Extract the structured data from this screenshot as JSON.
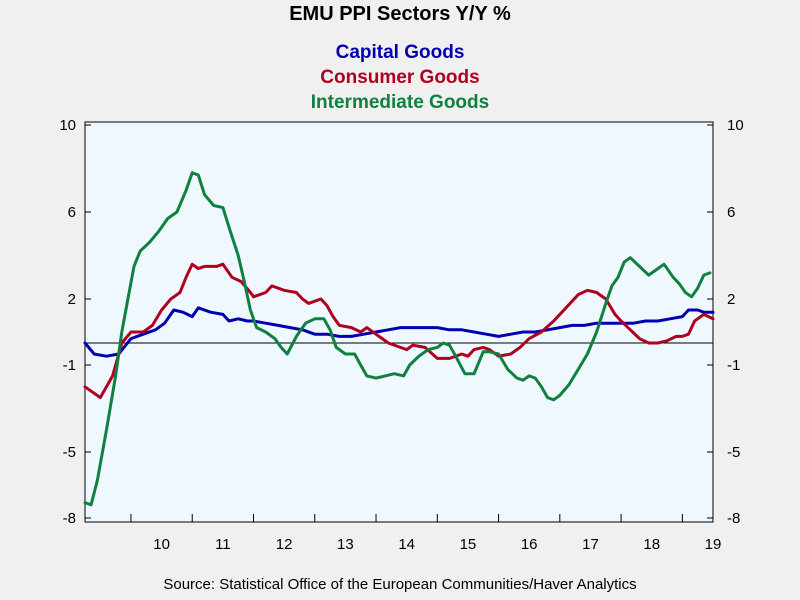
{
  "chart_data": {
    "type": "line",
    "title": "EMU PPI Sectors Y/Y %",
    "source": "Source:  Statistical Office of the European Communities/Haver Analytics",
    "xlabel": "",
    "ylabel": "",
    "ylim": [
      -8,
      10
    ],
    "y_ticks": [
      10,
      6,
      2,
      -1,
      -5,
      -8
    ],
    "x_start": 2009.25,
    "x_end": 2019.5,
    "x_ticks": [
      {
        "label": "10",
        "x": 2010.5
      },
      {
        "label": "11",
        "x": 2011.5
      },
      {
        "label": "12",
        "x": 2012.5
      },
      {
        "label": "13",
        "x": 2013.5
      },
      {
        "label": "14",
        "x": 2014.5
      },
      {
        "label": "15",
        "x": 2015.5
      },
      {
        "label": "16",
        "x": 2016.5
      },
      {
        "label": "17",
        "x": 2017.5
      },
      {
        "label": "18",
        "x": 2018.5
      },
      {
        "label": "19",
        "x": 2019.5
      }
    ],
    "zero_line": 0,
    "legend_position": "top-center",
    "background_color": "#f0f8ff",
    "series": [
      {
        "name": "Capital Goods",
        "color": "#0000b0",
        "points": [
          [
            2009.25,
            0.0
          ],
          [
            2009.4,
            -0.5
          ],
          [
            2009.6,
            -0.6
          ],
          [
            2009.8,
            -0.5
          ],
          [
            2010.0,
            0.2
          ],
          [
            2010.2,
            0.4
          ],
          [
            2010.4,
            0.6
          ],
          [
            2010.55,
            0.9
          ],
          [
            2010.7,
            1.5
          ],
          [
            2010.85,
            1.4
          ],
          [
            2011.0,
            1.2
          ],
          [
            2011.1,
            1.6
          ],
          [
            2011.3,
            1.4
          ],
          [
            2011.5,
            1.3
          ],
          [
            2011.6,
            1.0
          ],
          [
            2011.75,
            1.1
          ],
          [
            2011.9,
            1.0
          ],
          [
            2012.0,
            1.0
          ],
          [
            2012.2,
            0.9
          ],
          [
            2012.4,
            0.8
          ],
          [
            2012.6,
            0.7
          ],
          [
            2012.8,
            0.6
          ],
          [
            2013.0,
            0.4
          ],
          [
            2013.2,
            0.4
          ],
          [
            2013.4,
            0.3
          ],
          [
            2013.6,
            0.3
          ],
          [
            2013.8,
            0.4
          ],
          [
            2014.0,
            0.5
          ],
          [
            2014.2,
            0.6
          ],
          [
            2014.4,
            0.7
          ],
          [
            2014.6,
            0.7
          ],
          [
            2014.8,
            0.7
          ],
          [
            2015.0,
            0.7
          ],
          [
            2015.2,
            0.6
          ],
          [
            2015.4,
            0.6
          ],
          [
            2015.6,
            0.5
          ],
          [
            2015.8,
            0.4
          ],
          [
            2016.0,
            0.3
          ],
          [
            2016.2,
            0.4
          ],
          [
            2016.4,
            0.5
          ],
          [
            2016.6,
            0.5
          ],
          [
            2016.8,
            0.6
          ],
          [
            2017.0,
            0.7
          ],
          [
            2017.2,
            0.8
          ],
          [
            2017.4,
            0.8
          ],
          [
            2017.6,
            0.9
          ],
          [
            2017.8,
            0.9
          ],
          [
            2018.0,
            0.9
          ],
          [
            2018.2,
            0.9
          ],
          [
            2018.4,
            1.0
          ],
          [
            2018.6,
            1.0
          ],
          [
            2018.8,
            1.1
          ],
          [
            2019.0,
            1.2
          ],
          [
            2019.1,
            1.5
          ],
          [
            2019.25,
            1.5
          ],
          [
            2019.35,
            1.4
          ],
          [
            2019.5,
            1.4
          ]
        ]
      },
      {
        "name": "Consumer Goods",
        "color": "#b00020",
        "points": [
          [
            2009.25,
            -2.0
          ],
          [
            2009.5,
            -2.5
          ],
          [
            2009.7,
            -1.5
          ],
          [
            2009.85,
            0.0
          ],
          [
            2010.0,
            0.5
          ],
          [
            2010.2,
            0.5
          ],
          [
            2010.35,
            0.8
          ],
          [
            2010.5,
            1.5
          ],
          [
            2010.65,
            2.0
          ],
          [
            2010.8,
            2.3
          ],
          [
            2010.9,
            3.0
          ],
          [
            2011.0,
            3.6
          ],
          [
            2011.1,
            3.4
          ],
          [
            2011.2,
            3.5
          ],
          [
            2011.4,
            3.5
          ],
          [
            2011.5,
            3.6
          ],
          [
            2011.65,
            3.0
          ],
          [
            2011.8,
            2.8
          ],
          [
            2011.95,
            2.3
          ],
          [
            2012.0,
            2.1
          ],
          [
            2012.2,
            2.3
          ],
          [
            2012.3,
            2.6
          ],
          [
            2012.5,
            2.4
          ],
          [
            2012.7,
            2.3
          ],
          [
            2012.8,
            2.0
          ],
          [
            2012.9,
            1.8
          ],
          [
            2013.0,
            1.9
          ],
          [
            2013.1,
            2.0
          ],
          [
            2013.2,
            1.7
          ],
          [
            2013.3,
            1.2
          ],
          [
            2013.4,
            0.8
          ],
          [
            2013.6,
            0.7
          ],
          [
            2013.75,
            0.5
          ],
          [
            2013.85,
            0.7
          ],
          [
            2014.0,
            0.4
          ],
          [
            2014.2,
            0.0
          ],
          [
            2014.4,
            -0.2
          ],
          [
            2014.5,
            -0.3
          ],
          [
            2014.6,
            -0.1
          ],
          [
            2014.8,
            -0.2
          ],
          [
            2015.0,
            -0.7
          ],
          [
            2015.2,
            -0.7
          ],
          [
            2015.4,
            -0.5
          ],
          [
            2015.5,
            -0.6
          ],
          [
            2015.6,
            -0.3
          ],
          [
            2015.75,
            -0.2
          ],
          [
            2015.85,
            -0.3
          ],
          [
            2016.0,
            -0.6
          ],
          [
            2016.2,
            -0.5
          ],
          [
            2016.35,
            -0.2
          ],
          [
            2016.5,
            0.2
          ],
          [
            2016.7,
            0.5
          ],
          [
            2016.9,
            1.0
          ],
          [
            2017.1,
            1.6
          ],
          [
            2017.3,
            2.2
          ],
          [
            2017.45,
            2.4
          ],
          [
            2017.6,
            2.3
          ],
          [
            2017.75,
            2.0
          ],
          [
            2017.9,
            1.3
          ],
          [
            2018.0,
            1.0
          ],
          [
            2018.15,
            0.6
          ],
          [
            2018.3,
            0.2
          ],
          [
            2018.45,
            0.0
          ],
          [
            2018.6,
            0.0
          ],
          [
            2018.75,
            0.1
          ],
          [
            2018.9,
            0.3
          ],
          [
            2019.0,
            0.3
          ],
          [
            2019.1,
            0.4
          ],
          [
            2019.2,
            1.0
          ],
          [
            2019.35,
            1.3
          ],
          [
            2019.5,
            1.1
          ]
        ]
      },
      {
        "name": "Intermediate Goods",
        "color": "#108040",
        "points": [
          [
            2009.25,
            -7.3
          ],
          [
            2009.35,
            -7.4
          ],
          [
            2009.45,
            -6.3
          ],
          [
            2009.6,
            -4.0
          ],
          [
            2009.75,
            -1.5
          ],
          [
            2009.85,
            0.5
          ],
          [
            2009.95,
            2.0
          ],
          [
            2010.05,
            3.5
          ],
          [
            2010.15,
            4.2
          ],
          [
            2010.3,
            4.6
          ],
          [
            2010.45,
            5.1
          ],
          [
            2010.6,
            5.7
          ],
          [
            2010.75,
            6.0
          ],
          [
            2010.9,
            7.0
          ],
          [
            2011.0,
            7.8
          ],
          [
            2011.1,
            7.7
          ],
          [
            2011.2,
            6.8
          ],
          [
            2011.35,
            6.3
          ],
          [
            2011.5,
            6.2
          ],
          [
            2011.6,
            5.3
          ],
          [
            2011.75,
            4.0
          ],
          [
            2011.85,
            2.8
          ],
          [
            2011.95,
            1.5
          ],
          [
            2012.05,
            0.7
          ],
          [
            2012.2,
            0.5
          ],
          [
            2012.35,
            0.2
          ],
          [
            2012.45,
            -0.2
          ],
          [
            2012.55,
            -0.5
          ],
          [
            2012.7,
            0.3
          ],
          [
            2012.85,
            0.9
          ],
          [
            2013.0,
            1.1
          ],
          [
            2013.15,
            1.1
          ],
          [
            2013.25,
            0.6
          ],
          [
            2013.35,
            -0.2
          ],
          [
            2013.5,
            -0.5
          ],
          [
            2013.65,
            -0.5
          ],
          [
            2013.75,
            -1.0
          ],
          [
            2013.85,
            -1.5
          ],
          [
            2014.0,
            -1.6
          ],
          [
            2014.15,
            -1.5
          ],
          [
            2014.3,
            -1.4
          ],
          [
            2014.45,
            -1.5
          ],
          [
            2014.55,
            -1.0
          ],
          [
            2014.7,
            -0.6
          ],
          [
            2014.85,
            -0.3
          ],
          [
            2015.0,
            -0.2
          ],
          [
            2015.1,
            0.0
          ],
          [
            2015.2,
            -0.1
          ],
          [
            2015.3,
            -0.6
          ],
          [
            2015.45,
            -1.4
          ],
          [
            2015.6,
            -1.4
          ],
          [
            2015.75,
            -0.4
          ],
          [
            2015.85,
            -0.4
          ],
          [
            2016.0,
            -0.5
          ],
          [
            2016.15,
            -1.2
          ],
          [
            2016.3,
            -1.6
          ],
          [
            2016.4,
            -1.7
          ],
          [
            2016.5,
            -1.5
          ],
          [
            2016.6,
            -1.6
          ],
          [
            2016.7,
            -2.0
          ],
          [
            2016.8,
            -2.5
          ],
          [
            2016.9,
            -2.6
          ],
          [
            2017.0,
            -2.4
          ],
          [
            2017.15,
            -1.9
          ],
          [
            2017.3,
            -1.2
          ],
          [
            2017.45,
            -0.5
          ],
          [
            2017.6,
            0.5
          ],
          [
            2017.75,
            1.8
          ],
          [
            2017.85,
            2.6
          ],
          [
            2017.95,
            3.0
          ],
          [
            2018.05,
            3.7
          ],
          [
            2018.15,
            3.9
          ],
          [
            2018.3,
            3.5
          ],
          [
            2018.45,
            3.1
          ],
          [
            2018.6,
            3.4
          ],
          [
            2018.7,
            3.6
          ],
          [
            2018.85,
            3.0
          ],
          [
            2018.95,
            2.7
          ],
          [
            2019.05,
            2.3
          ],
          [
            2019.15,
            2.1
          ],
          [
            2019.25,
            2.5
          ],
          [
            2019.35,
            3.1
          ],
          [
            2019.45,
            3.2
          ]
        ]
      }
    ]
  }
}
